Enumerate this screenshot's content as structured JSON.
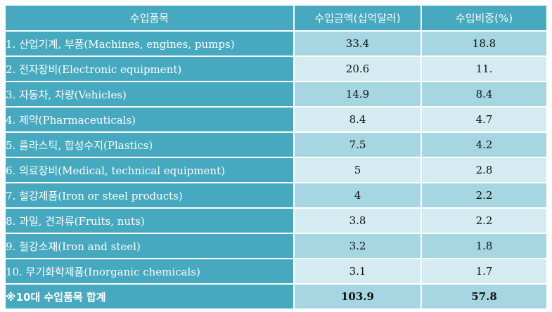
{
  "table": {
    "headers": [
      "수입품목",
      "수입금액(십억달러)",
      "수입비중(%)"
    ],
    "rows": [
      {
        "item": "1. 산업기계, 부품(Machines, engines, pumps)",
        "amount": "33.4",
        "share": "18.8"
      },
      {
        "item": "2. 전자장비(Electronic equipment)",
        "amount": "20.6",
        "share": "11."
      },
      {
        "item": "3. 자동차, 차량(Vehicles)",
        "amount": "14.9",
        "share": "8.4"
      },
      {
        "item": "4. 제약(Pharmaceuticals)",
        "amount": "8.4",
        "share": "4.7"
      },
      {
        "item": "5. 플라스틱, 합성수지(Plastics)",
        "amount": "7.5",
        "share": "4.2"
      },
      {
        "item": "6. 의료장비(Medical, technical equipment)",
        "amount": "5",
        "share": "2.8"
      },
      {
        "item": "7. 철강제품(Iron or steel products)",
        "amount": "4",
        "share": "2.2"
      },
      {
        "item": "8. 과일, 견과류(Fruits, nuts)",
        "amount": "3.8",
        "share": "2.2"
      },
      {
        "item": "9. 철강소재(Iron and steel)",
        "amount": "3.2",
        "share": "1.8"
      },
      {
        "item": "10. 무기화학제품(Inorganic chemicals)",
        "amount": "3.1",
        "share": "1.7"
      }
    ],
    "total": {
      "item": "※10대 수입품목 합계",
      "amount": "103.9",
      "share": "57.8"
    }
  },
  "colors": {
    "header_bg": "#46a9bf",
    "row_light": "#d3ebf1",
    "row_mid": "#a6d6e1",
    "text_light": "#ffffff"
  }
}
